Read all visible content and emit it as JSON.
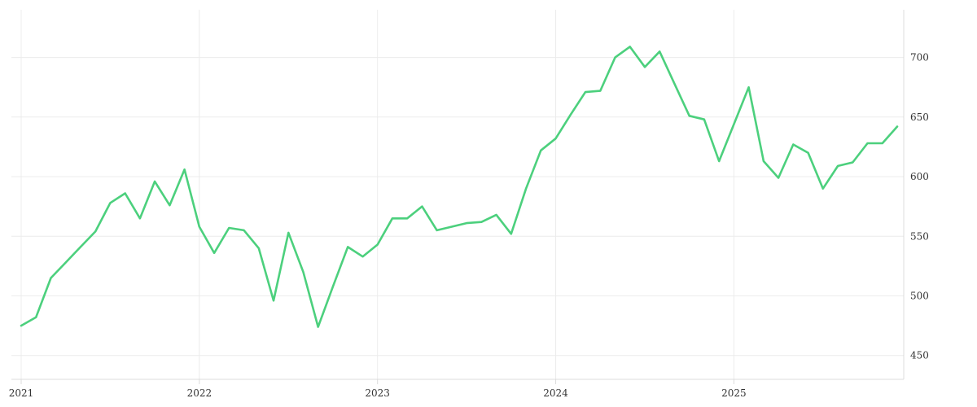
{
  "chart_data": {
    "type": "line",
    "title": "",
    "xlabel": "",
    "ylabel": "",
    "x_tick_labels": [
      "2021",
      "2022",
      "2023",
      "2024",
      "2025"
    ],
    "y_tick_labels": [
      "450",
      "500",
      "550",
      "600",
      "650",
      "700"
    ],
    "ylim": [
      430,
      740
    ],
    "xlim": [
      "2021-01",
      "2025-12"
    ],
    "y_axis_side": "right",
    "grid": true,
    "legend": "none",
    "colors": {
      "line": "#4cd07d",
      "grid": "#ececec",
      "axis": "#dcdcdc",
      "text": "#333333"
    },
    "series": [
      {
        "x": [
          "2021-01",
          "2021-02",
          "2021-03",
          "2021-04",
          "2021-05",
          "2021-06",
          "2021-07",
          "2021-08",
          "2021-09",
          "2021-10",
          "2021-11",
          "2021-12",
          "2022-01",
          "2022-02",
          "2022-03",
          "2022-04",
          "2022-05",
          "2022-06",
          "2022-07",
          "2022-08",
          "2022-09",
          "2022-10",
          "2022-11",
          "2022-12",
          "2023-01",
          "2023-02",
          "2023-03",
          "2023-04",
          "2023-05",
          "2023-06",
          "2023-07",
          "2023-08",
          "2023-09",
          "2023-10",
          "2023-11",
          "2023-12",
          "2024-01",
          "2024-02",
          "2024-03",
          "2024-04",
          "2024-05",
          "2024-06",
          "2024-07",
          "2024-08",
          "2024-09",
          "2024-10",
          "2024-11",
          "2024-12",
          "2025-01",
          "2025-02",
          "2025-03",
          "2025-04",
          "2025-05",
          "2025-06",
          "2025-07",
          "2025-08",
          "2025-09",
          "2025-10",
          "2025-11",
          "2025-12"
        ],
        "values": [
          475,
          482,
          515,
          528,
          541,
          554,
          578,
          586,
          565,
          596,
          576,
          606,
          558,
          536,
          557,
          555,
          540,
          496,
          553,
          520,
          474,
          508,
          541,
          533,
          543,
          565,
          565,
          575,
          555,
          558,
          561,
          562,
          568,
          552,
          590,
          622,
          632,
          652,
          671,
          672,
          700,
          709,
          692,
          705,
          678,
          651,
          648,
          613,
          644,
          675,
          613,
          599,
          627,
          620,
          590,
          609,
          612,
          628,
          628,
          642
        ]
      }
    ]
  }
}
